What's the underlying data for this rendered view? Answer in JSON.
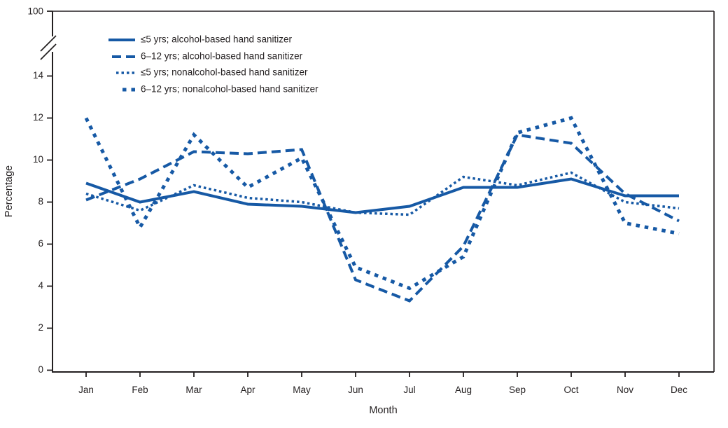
{
  "chart_data": {
    "type": "line",
    "title": "",
    "xlabel": "Month",
    "ylabel": "Percentage",
    "x_categories": [
      "Jan",
      "Feb",
      "Mar",
      "Apr",
      "May",
      "Jun",
      "Jul",
      "Aug",
      "Sep",
      "Oct",
      "Nov",
      "Dec"
    ],
    "y_ticks": [
      0,
      2,
      4,
      6,
      8,
      10,
      12,
      14
    ],
    "y_axis_break_top_label": "100",
    "ylim": [
      0,
      14
    ],
    "grid": false,
    "legend_position": "top-left-inside",
    "line_color": "#1659A5",
    "axis_color": "#231F20",
    "series": [
      {
        "name": "under5-alcohol",
        "label": "≤5 yrs;  alcohol-based hand sanitizer",
        "line_style": "solid",
        "values": [
          8.9,
          8.0,
          8.5,
          7.9,
          7.8,
          7.5,
          7.8,
          8.7,
          8.7,
          9.1,
          8.3,
          8.3
        ]
      },
      {
        "name": "6to12-alcohol",
        "label": "6–12 yrs; alcohol-based hand sanitizer",
        "line_style": "dashed",
        "values": [
          8.1,
          9.1,
          10.4,
          10.3,
          10.5,
          4.3,
          3.3,
          5.9,
          11.2,
          10.8,
          8.4,
          7.1
        ]
      },
      {
        "name": "under5-nonalcohol",
        "label": "≤5 yrs;  nonalcohol-based hand sanitizer",
        "line_style": "dotted-small",
        "values": [
          8.4,
          7.6,
          8.8,
          8.2,
          8.0,
          7.5,
          7.4,
          9.2,
          8.8,
          9.4,
          8.0,
          7.7
        ]
      },
      {
        "name": "6to12-nonalcohol",
        "label": "6–12 yrs; nonalcohol-based hand sanitizer",
        "line_style": "dotted-large",
        "values": [
          12.0,
          6.8,
          11.2,
          8.7,
          10.1,
          4.9,
          3.9,
          5.4,
          11.3,
          12.0,
          7.0,
          6.5
        ]
      }
    ]
  }
}
